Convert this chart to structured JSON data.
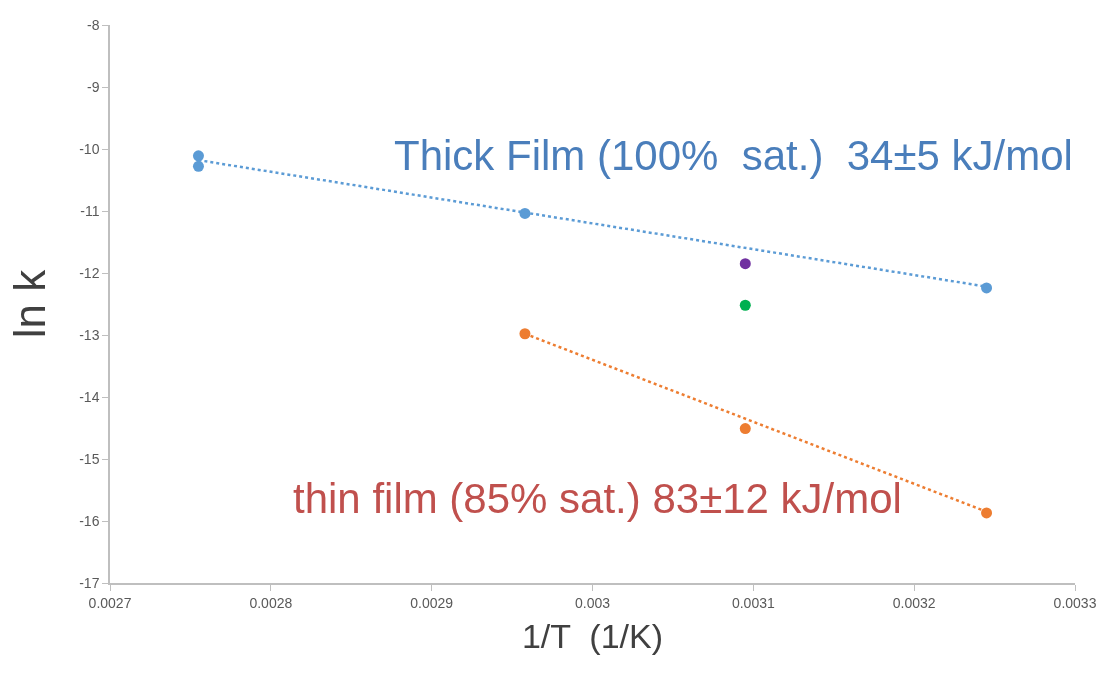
{
  "chart_data": {
    "type": "scatter",
    "xlabel": "1/T  (1/K)",
    "ylabel": "ln k",
    "xlim": [
      0.0027,
      0.0033
    ],
    "xticks": [
      0.0027,
      0.0028,
      0.0029,
      0.003,
      0.0031,
      0.0032,
      0.0033
    ],
    "ylim": [
      -17,
      -8
    ],
    "yticks": [
      -17,
      -16,
      -15,
      -14,
      -13,
      -12,
      -11,
      -10,
      -9,
      -8
    ],
    "marker": "circle",
    "series": [
      {
        "color": "#5b9bd5",
        "x": [
          0.002755,
          0.002755,
          0.002958,
          0.003245
        ],
        "values": [
          -10.11,
          -10.28,
          -11.04,
          -12.24
        ]
      },
      {
        "color": "#ed7d31",
        "x": [
          0.002958,
          0.003095,
          0.003245
        ],
        "values": [
          -12.98,
          -14.51,
          -15.87
        ]
      },
      {
        "color": "#7030a0",
        "x": [
          0.003095
        ],
        "values": [
          -11.85
        ]
      },
      {
        "color": "#00b050",
        "x": [
          0.003095
        ],
        "values": [
          -12.52
        ]
      },
      {
        "type": "line",
        "line_style": "dotted",
        "marker": "none",
        "color": "#5b9bd5",
        "x": [
          0.002755,
          0.003245
        ],
        "values": [
          -10.18,
          -12.22
        ]
      },
      {
        "type": "line",
        "line_style": "dotted",
        "marker": "none",
        "color": "#ed7d31",
        "x": [
          0.002958,
          0.003245
        ],
        "values": [
          -12.98,
          -15.85
        ]
      }
    ],
    "annotations": [
      "Thick Film (100%  sat.)  34±5 kJ/mol",
      "thin film (85% sat.) 83±12 kJ/mol"
    ]
  }
}
